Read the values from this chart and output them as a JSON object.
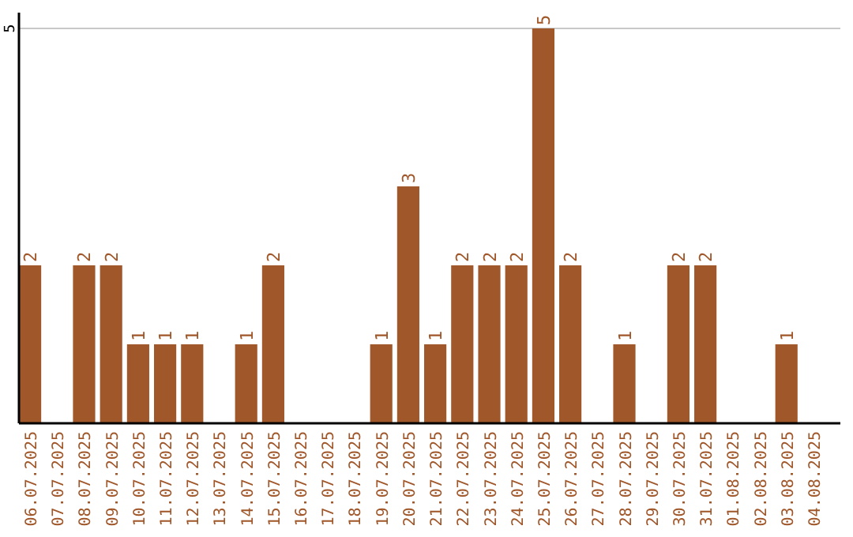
{
  "chart_data": {
    "type": "bar",
    "categories": [
      "06.07.2025",
      "07.07.2025",
      "08.07.2025",
      "09.07.2025",
      "10.07.2025",
      "11.07.2025",
      "12.07.2025",
      "13.07.2025",
      "14.07.2025",
      "15.07.2025",
      "16.07.2025",
      "17.07.2025",
      "18.07.2025",
      "19.07.2025",
      "20.07.2025",
      "21.07.2025",
      "22.07.2025",
      "23.07.2025",
      "24.07.2025",
      "25.07.2025",
      "26.07.2025",
      "27.07.2025",
      "28.07.2025",
      "29.07.2025",
      "30.07.2025",
      "31.07.2025",
      "01.08.2025",
      "02.08.2025",
      "03.08.2025",
      "04.08.2025"
    ],
    "values": [
      2,
      0,
      2,
      2,
      1,
      1,
      1,
      0,
      1,
      2,
      0,
      0,
      0,
      1,
      3,
      1,
      2,
      2,
      2,
      5,
      2,
      0,
      1,
      0,
      2,
      2,
      0,
      0,
      1,
      0
    ],
    "value_labels": [
      "2",
      null,
      "2",
      "2",
      "1",
      "1",
      "1",
      null,
      "1",
      "2",
      null,
      null,
      null,
      "1",
      "3",
      "1",
      "2",
      "2",
      "2",
      "5",
      "2",
      null,
      "1",
      null,
      "2",
      "2",
      null,
      null,
      "1",
      null
    ],
    "color": "#a0572a",
    "ylim": [
      0,
      5.2
    ],
    "yticks": [
      5
    ],
    "grid": "y"
  }
}
